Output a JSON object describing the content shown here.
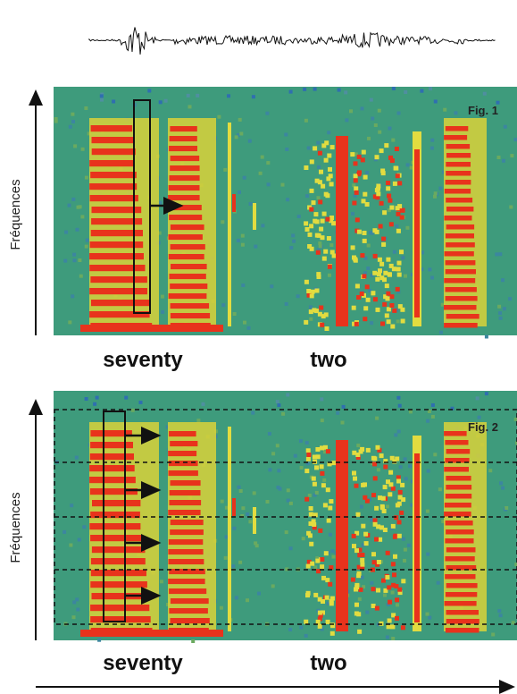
{
  "figures": [
    {
      "label": "Fig. 1",
      "y_axis_label": "Fréquences",
      "words": [
        "seventy",
        "two"
      ]
    },
    {
      "label": "Fig. 2",
      "y_axis_label": "Fréquences",
      "words": [
        "seventy",
        "two"
      ]
    }
  ]
}
